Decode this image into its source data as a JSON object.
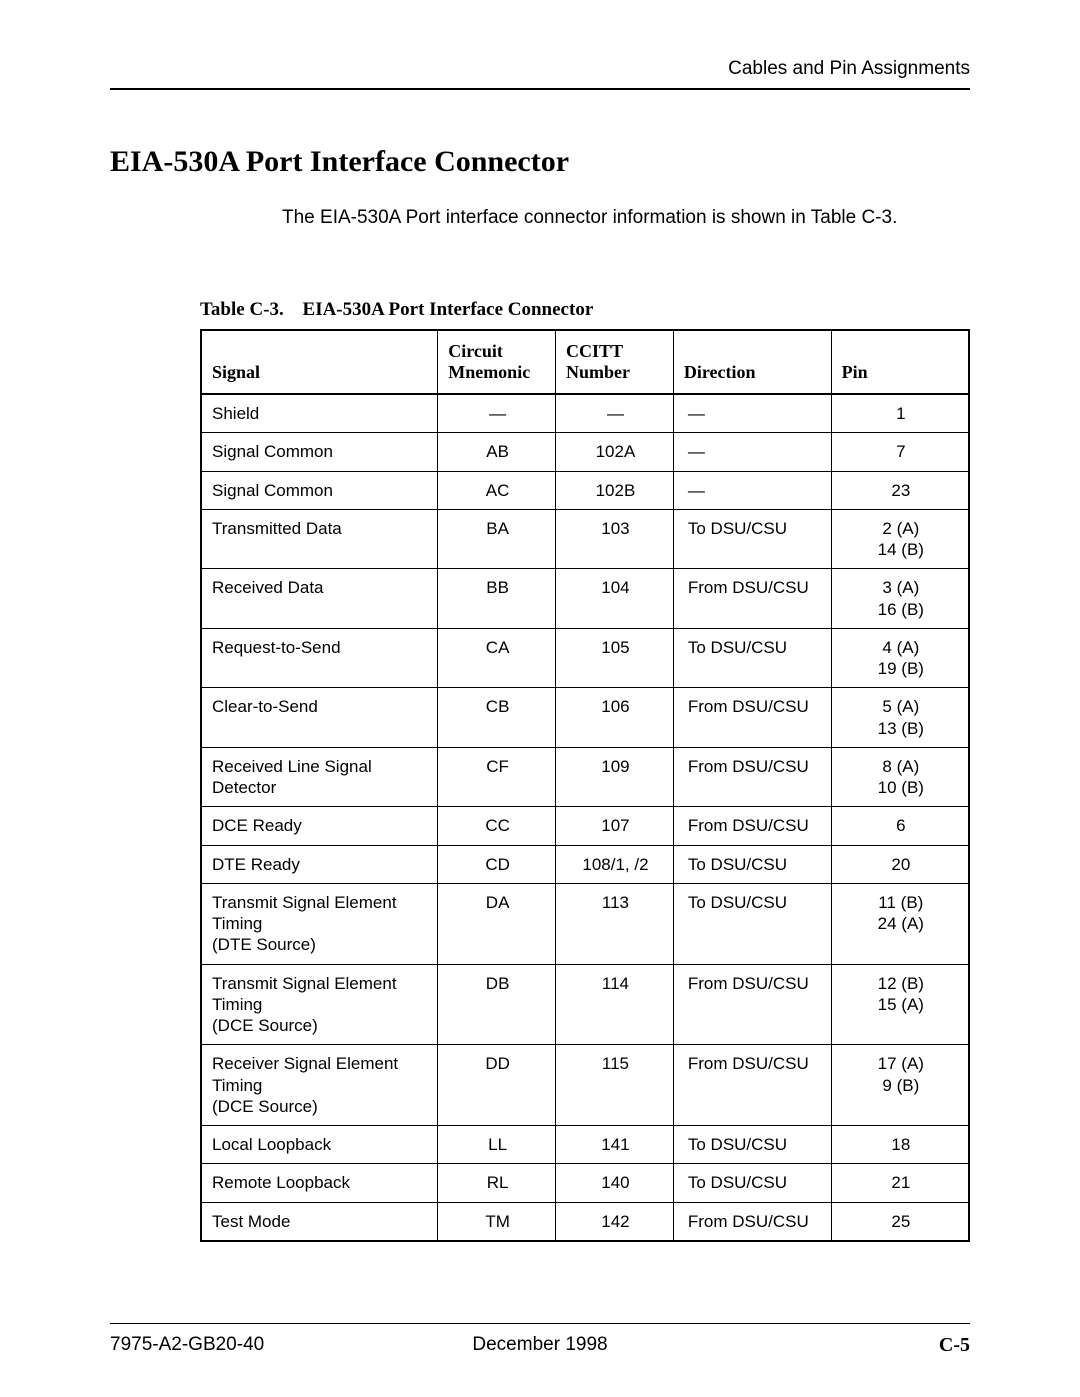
{
  "header": {
    "right_text": "Cables and Pin Assignments"
  },
  "section": {
    "title": "EIA-530A Port Interface Connector",
    "intro": "The EIA-530A Port interface connector information is shown in Table C-3."
  },
  "table": {
    "caption_label": "Table C-3.",
    "caption_title": "EIA-530A Port Interface Connector",
    "columns": {
      "signal": "Signal",
      "mnemonic": "Circuit\nMnemonic",
      "ccitt": "CCITT\nNumber",
      "direction": "Direction",
      "pin": "Pin"
    },
    "rows": [
      {
        "signal": "Shield",
        "mnemonic": "—",
        "ccitt": "—",
        "direction": "—",
        "pin": "1"
      },
      {
        "signal": "Signal Common",
        "mnemonic": "AB",
        "ccitt": "102A",
        "direction": "—",
        "pin": "7"
      },
      {
        "signal": "Signal Common",
        "mnemonic": "AC",
        "ccitt": "102B",
        "direction": "—",
        "pin": "23"
      },
      {
        "signal": "Transmitted Data",
        "mnemonic": "BA",
        "ccitt": "103",
        "direction": "To DSU/CSU",
        "pin": "2 (A)\n14 (B)"
      },
      {
        "signal": "Received Data",
        "mnemonic": "BB",
        "ccitt": "104",
        "direction": "From DSU/CSU",
        "pin": "3 (A)\n16 (B)"
      },
      {
        "signal": "Request-to-Send",
        "mnemonic": "CA",
        "ccitt": "105",
        "direction": "To DSU/CSU",
        "pin": "4 (A)\n19 (B)"
      },
      {
        "signal": "Clear-to-Send",
        "mnemonic": "CB",
        "ccitt": "106",
        "direction": "From DSU/CSU",
        "pin": "5 (A)\n13 (B)"
      },
      {
        "signal": "Received Line Signal Detector",
        "mnemonic": "CF",
        "ccitt": "109",
        "direction": "From DSU/CSU",
        "pin": "8 (A)\n10 (B)"
      },
      {
        "signal": "DCE Ready",
        "mnemonic": "CC",
        "ccitt": "107",
        "direction": "From DSU/CSU",
        "pin": "6"
      },
      {
        "signal": "DTE Ready",
        "mnemonic": "CD",
        "ccitt": "108/1, /2",
        "direction": "To DSU/CSU",
        "pin": "20"
      },
      {
        "signal": "Transmit Signal Element Timing\n(DTE Source)",
        "mnemonic": "DA",
        "ccitt": "113",
        "direction": "To DSU/CSU",
        "pin": "11 (B)\n24 (A)"
      },
      {
        "signal": "Transmit Signal Element Timing\n(DCE Source)",
        "mnemonic": "DB",
        "ccitt": "114",
        "direction": "From DSU/CSU",
        "pin": "12 (B)\n15 (A)"
      },
      {
        "signal": "Receiver Signal Element Timing\n(DCE Source)",
        "mnemonic": "DD",
        "ccitt": "115",
        "direction": "From DSU/CSU",
        "pin": "17 (A)\n9 (B)"
      },
      {
        "signal": "Local Loopback",
        "mnemonic": "LL",
        "ccitt": "141",
        "direction": "To DSU/CSU",
        "pin": "18"
      },
      {
        "signal": "Remote Loopback",
        "mnemonic": "RL",
        "ccitt": "140",
        "direction": "To DSU/CSU",
        "pin": "21"
      },
      {
        "signal": "Test Mode",
        "mnemonic": "TM",
        "ccitt": "142",
        "direction": "From DSU/CSU",
        "pin": "25"
      }
    ]
  },
  "footer": {
    "left": "7975-A2-GB20-40",
    "center": "December 1998",
    "right": "C-5"
  }
}
